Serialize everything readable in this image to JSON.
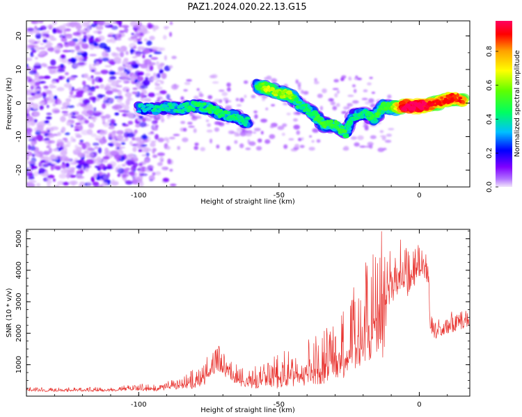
{
  "title": "PAZ1.2024.020.22.13.G15",
  "chart_data": [
    {
      "type": "heatmap",
      "xlabel": "Height of straight line (km)",
      "ylabel": "Frequency (Hz)",
      "xlim": [
        -140,
        18
      ],
      "ylim": [
        -25,
        24.5
      ],
      "x_ticks": [
        -100,
        -50,
        0
      ],
      "y_ticks": [
        -20,
        -10,
        0,
        10,
        20
      ],
      "colorbar": {
        "label": "Normalized spectral amplitude",
        "range": [
          0,
          0.98
        ],
        "ticks": [
          0.0,
          0.2,
          0.4,
          0.6,
          0.8
        ],
        "colormap": [
          "#f2e6fb",
          "#8000ff",
          "#0000ff",
          "#00c0ff",
          "#00ff60",
          "#60ff00",
          "#ffff00",
          "#ffa000",
          "#ff0000",
          "#ff0060"
        ]
      },
      "ridge": [
        {
          "x": -100,
          "y": -1.5,
          "a": 0.25
        },
        {
          "x": -95,
          "y": -1.8,
          "a": 0.28
        },
        {
          "x": -90,
          "y": -1.3,
          "a": 0.28
        },
        {
          "x": -85,
          "y": -1.6,
          "a": 0.3
        },
        {
          "x": -80,
          "y": -0.8,
          "a": 0.32
        },
        {
          "x": -75,
          "y": -1.5,
          "a": 0.34
        },
        {
          "x": -70,
          "y": -3.5,
          "a": 0.34
        },
        {
          "x": -65,
          "y": -4.0,
          "a": 0.3
        },
        {
          "x": -62,
          "y": -5.5,
          "a": 0.3
        },
        {
          "x": -58,
          "y": 5.0,
          "a": 0.32
        },
        {
          "x": -54,
          "y": 4.5,
          "a": 0.55
        },
        {
          "x": -50,
          "y": 3.0,
          "a": 0.45
        },
        {
          "x": -46,
          "y": 2.5,
          "a": 0.5
        },
        {
          "x": -43,
          "y": -0.5,
          "a": 0.32
        },
        {
          "x": -38,
          "y": -3.0,
          "a": 0.35
        },
        {
          "x": -34,
          "y": -6.5,
          "a": 0.38
        },
        {
          "x": -30,
          "y": -6.5,
          "a": 0.38
        },
        {
          "x": -26,
          "y": -9.0,
          "a": 0.35
        },
        {
          "x": -24,
          "y": -4.0,
          "a": 0.3
        },
        {
          "x": -20,
          "y": -3.0,
          "a": 0.32
        },
        {
          "x": -16,
          "y": -4.5,
          "a": 0.35
        },
        {
          "x": -13,
          "y": -1.0,
          "a": 0.38
        },
        {
          "x": -10,
          "y": -1.5,
          "a": 0.4
        },
        {
          "x": -5,
          "y": -1.0,
          "a": 0.95
        },
        {
          "x": 0,
          "y": -1.0,
          "a": 0.95
        },
        {
          "x": 4,
          "y": -0.5,
          "a": 0.8
        },
        {
          "x": 8,
          "y": 0.5,
          "a": 0.75
        },
        {
          "x": 12,
          "y": 1.5,
          "a": 0.75
        },
        {
          "x": 16,
          "y": 1.0,
          "a": 0.75
        }
      ]
    },
    {
      "type": "line",
      "xlabel": "Height of straight line (km)",
      "ylabel": "SNR (10 * v/v)",
      "xlim": [
        -140,
        18
      ],
      "ylim": [
        0,
        5300
      ],
      "x_ticks": [
        -100,
        -50,
        0
      ],
      "y_ticks": [
        1000,
        2000,
        3000,
        4000,
        5000
      ],
      "series": [
        {
          "color": "#e8322e",
          "x": [
            -140,
            -130,
            -120,
            -110,
            -100,
            -95,
            -90,
            -85,
            -80,
            -76,
            -73,
            -71,
            -68,
            -65,
            -60,
            -55,
            -50,
            -45,
            -40,
            -35,
            -30,
            -25,
            -20,
            -17,
            -15,
            -13,
            -11,
            -9,
            -7,
            -5,
            -3,
            -1,
            1,
            3,
            4,
            6,
            10,
            14,
            18
          ],
          "y": [
            200,
            180,
            190,
            200,
            250,
            220,
            280,
            350,
            450,
            650,
            900,
            1050,
            700,
            550,
            450,
            500,
            600,
            700,
            800,
            900,
            1100,
            1400,
            1800,
            2300,
            2500,
            2100,
            3500,
            3700,
            3900,
            3600,
            3700,
            4100,
            4200,
            4000,
            2200,
            2000,
            2200,
            2300,
            2400
          ],
          "spread": [
            60,
            60,
            60,
            70,
            100,
            100,
            120,
            180,
            300,
            400,
            450,
            420,
            350,
            300,
            300,
            400,
            500,
            600,
            700,
            800,
            900,
            1100,
            1300,
            1600,
            1700,
            1500,
            900,
            900,
            800,
            800,
            700,
            600,
            500,
            600,
            300,
            300,
            300,
            300,
            300
          ]
        }
      ]
    }
  ]
}
